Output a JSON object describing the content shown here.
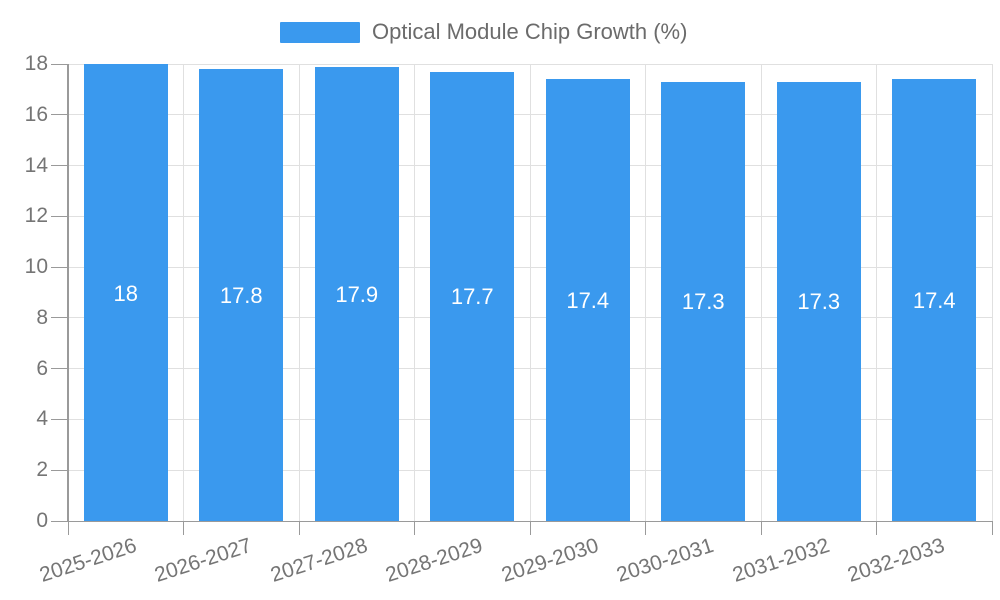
{
  "legend": {
    "label": "Optical Module Chip Growth (%)"
  },
  "colors": {
    "bar": "#3A99EE",
    "grid": "#E0E0E0",
    "axis": "#9A9A9A",
    "tick_text": "#757575",
    "legend_text": "#6B6B6B",
    "value_text": "#FFFFFF",
    "background": "#FFFFFF"
  },
  "chart_data": {
    "type": "bar",
    "title": "Optical Module Chip Growth (%)",
    "legend_position": "top-center",
    "categories": [
      "2025-2026",
      "2026-2027",
      "2027-2028",
      "2028-2029",
      "2029-2030",
      "2030-2031",
      "2031-2032",
      "2032-2033"
    ],
    "values": [
      18,
      17.8,
      17.9,
      17.7,
      17.4,
      17.3,
      17.3,
      17.4
    ],
    "series_name": "Optical Module Chip Growth (%)",
    "xlabel": "",
    "ylabel": "",
    "ylim": [
      0,
      18
    ],
    "yticks": [
      0,
      2,
      4,
      6,
      8,
      10,
      12,
      14,
      16,
      18
    ],
    "grid": true,
    "value_labels_inside_bars": true,
    "x_label_rotation_deg": -18
  }
}
